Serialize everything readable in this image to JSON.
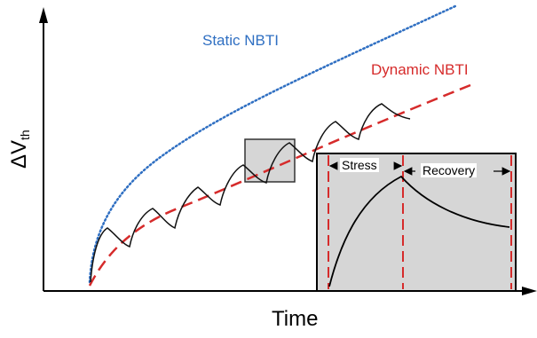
{
  "curves": {
    "static": {
      "label": "Static NBTI",
      "color": "#2f6fc2"
    },
    "dynamic": {
      "label": "Dynamic NBTI",
      "color": "#d62b2b"
    }
  },
  "axes": {
    "x_label": "Time",
    "y_label_main": "ΔV",
    "y_label_sub": "th"
  },
  "inset": {
    "stress_label": "Stress",
    "recovery_label": "Recovery",
    "fill_color": "#d6d6d6"
  }
}
